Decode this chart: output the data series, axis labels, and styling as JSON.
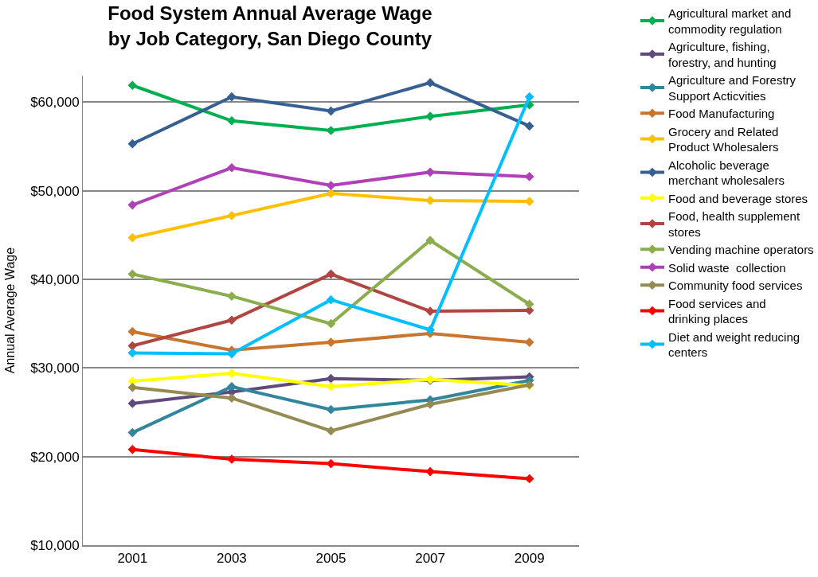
{
  "chart_data": {
    "type": "line",
    "title": "Food System Annual Average Wage by Job Category, San Diego County",
    "ylabel": "Annual Average Wage",
    "categories": [
      "2001",
      "2003",
      "2005",
      "2007",
      "2009"
    ],
    "series": [
      {
        "name": "Agricultural market and commodity regulation",
        "color": "#00b050",
        "values": [
          61900,
          57900,
          56800,
          58400,
          59700
        ]
      },
      {
        "name": "Agriculture, fishing, forestry, and hunting",
        "color": "#604a7b",
        "values": [
          26000,
          27300,
          28800,
          28600,
          29000
        ]
      },
      {
        "name": "Agriculture and Forestry Support Acticvities",
        "color": "#31859c",
        "values": [
          22700,
          27900,
          25300,
          26400,
          28600
        ]
      },
      {
        "name": "Food Manufacturing",
        "color": "#c8752f",
        "values": [
          34100,
          32000,
          32900,
          33900,
          32900
        ]
      },
      {
        "name": "Grocery and Related Product Wholesalers",
        "color": "#ffc000",
        "values": [
          44700,
          47200,
          49700,
          48900,
          48800
        ]
      },
      {
        "name": "Alcoholic beverage merchant wholesalers",
        "color": "#376092",
        "values": [
          55300,
          60600,
          59000,
          62200,
          57300
        ]
      },
      {
        "name": "Food and beverage stores",
        "color": "#ffff00",
        "values": [
          28500,
          29400,
          27900,
          28700,
          28000
        ]
      },
      {
        "name": "Food, health supplement stores",
        "color": "#b04541",
        "values": [
          32500,
          35400,
          40600,
          36400,
          36500
        ]
      },
      {
        "name": "Vending machine operators",
        "color": "#8cad4b",
        "values": [
          40600,
          38100,
          35000,
          44400,
          37200
        ]
      },
      {
        "name": "Solid waste  collection",
        "color": "#b040b8",
        "values": [
          48400,
          52600,
          50600,
          52100,
          51600
        ]
      },
      {
        "name": "Community food services",
        "color": "#948a54",
        "values": [
          27800,
          26600,
          22900,
          25900,
          28100
        ]
      },
      {
        "name": "Food services and drinking places",
        "color": "#ff0000",
        "values": [
          20800,
          19700,
          19200,
          18300,
          17500
        ]
      },
      {
        "name": "Diet and weight reducing centers",
        "color": "#00bfff",
        "values": [
          31700,
          31600,
          37700,
          34300,
          60600
        ]
      }
    ],
    "ylim": [
      10000,
      63000
    ],
    "yticks": [
      {
        "value": 10000,
        "label": "$10,000"
      },
      {
        "value": 20000,
        "label": "$20,000"
      },
      {
        "value": 30000,
        "label": "$30,000"
      },
      {
        "value": 40000,
        "label": "$40,000"
      },
      {
        "value": 50000,
        "label": "$50,000"
      },
      {
        "value": 60000,
        "label": "$60,000"
      }
    ],
    "grid": "y",
    "legend": "right",
    "marker": "diamond",
    "line_style": "solid"
  }
}
